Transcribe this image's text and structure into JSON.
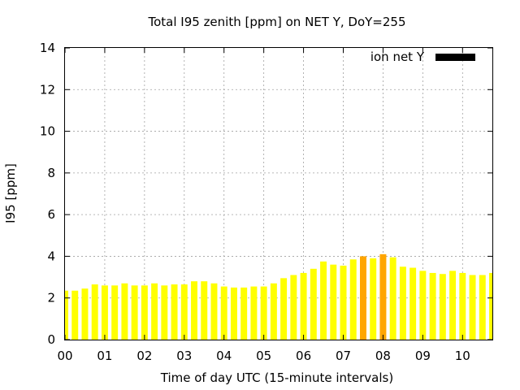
{
  "chart_data": {
    "type": "bar",
    "title": "Total I95 zenith [ppm] on NET Y, DoY=255",
    "xlabel": "Time of day UTC (15-minute intervals)",
    "ylabel": "I95 [ppm]",
    "ylim": [
      0,
      14
    ],
    "yticks": [
      0,
      2,
      4,
      6,
      8,
      10,
      12,
      14
    ],
    "xlim": [
      0,
      10.75
    ],
    "xticks": [
      0,
      1,
      2,
      3,
      4,
      5,
      6,
      7,
      8,
      9,
      10
    ],
    "xtick_labels": [
      "00",
      "01",
      "02",
      "03",
      "04",
      "05",
      "06",
      "07",
      "08",
      "09",
      "10"
    ],
    "grid": true,
    "legend": {
      "label": "ion net Y",
      "color": "#000000",
      "position": "top-right"
    },
    "colors": {
      "normal": "#ffff00",
      "highlight": "#ffa500"
    },
    "series": [
      {
        "name": "ion net Y",
        "x": [
          0.0,
          0.25,
          0.5,
          0.75,
          1.0,
          1.25,
          1.5,
          1.75,
          2.0,
          2.25,
          2.5,
          2.75,
          3.0,
          3.25,
          3.5,
          3.75,
          4.0,
          4.25,
          4.5,
          4.75,
          5.0,
          5.25,
          5.5,
          5.75,
          6.0,
          6.25,
          6.5,
          6.75,
          7.0,
          7.25,
          7.5,
          7.75,
          8.0,
          8.25,
          8.5,
          8.75,
          9.0,
          9.25,
          9.5,
          9.75,
          10.0,
          10.25,
          10.5,
          10.75
        ],
        "values": [
          2.35,
          2.35,
          2.45,
          2.65,
          2.6,
          2.6,
          2.7,
          2.6,
          2.6,
          2.7,
          2.6,
          2.65,
          2.65,
          2.8,
          2.8,
          2.7,
          2.55,
          2.5,
          2.5,
          2.55,
          2.55,
          2.7,
          2.95,
          3.1,
          3.2,
          3.4,
          3.75,
          3.6,
          3.55,
          3.85,
          4.0,
          3.9,
          4.1,
          3.95,
          3.5,
          3.45,
          3.3,
          3.2,
          3.15,
          3.3,
          3.2,
          3.1,
          3.1,
          3.2
        ],
        "highlight": [
          false,
          false,
          false,
          false,
          false,
          false,
          false,
          false,
          false,
          false,
          false,
          false,
          false,
          false,
          false,
          false,
          false,
          false,
          false,
          false,
          false,
          false,
          false,
          false,
          false,
          false,
          false,
          false,
          false,
          false,
          true,
          false,
          true,
          false,
          false,
          false,
          false,
          false,
          false,
          false,
          false,
          false,
          false,
          false
        ]
      }
    ]
  }
}
